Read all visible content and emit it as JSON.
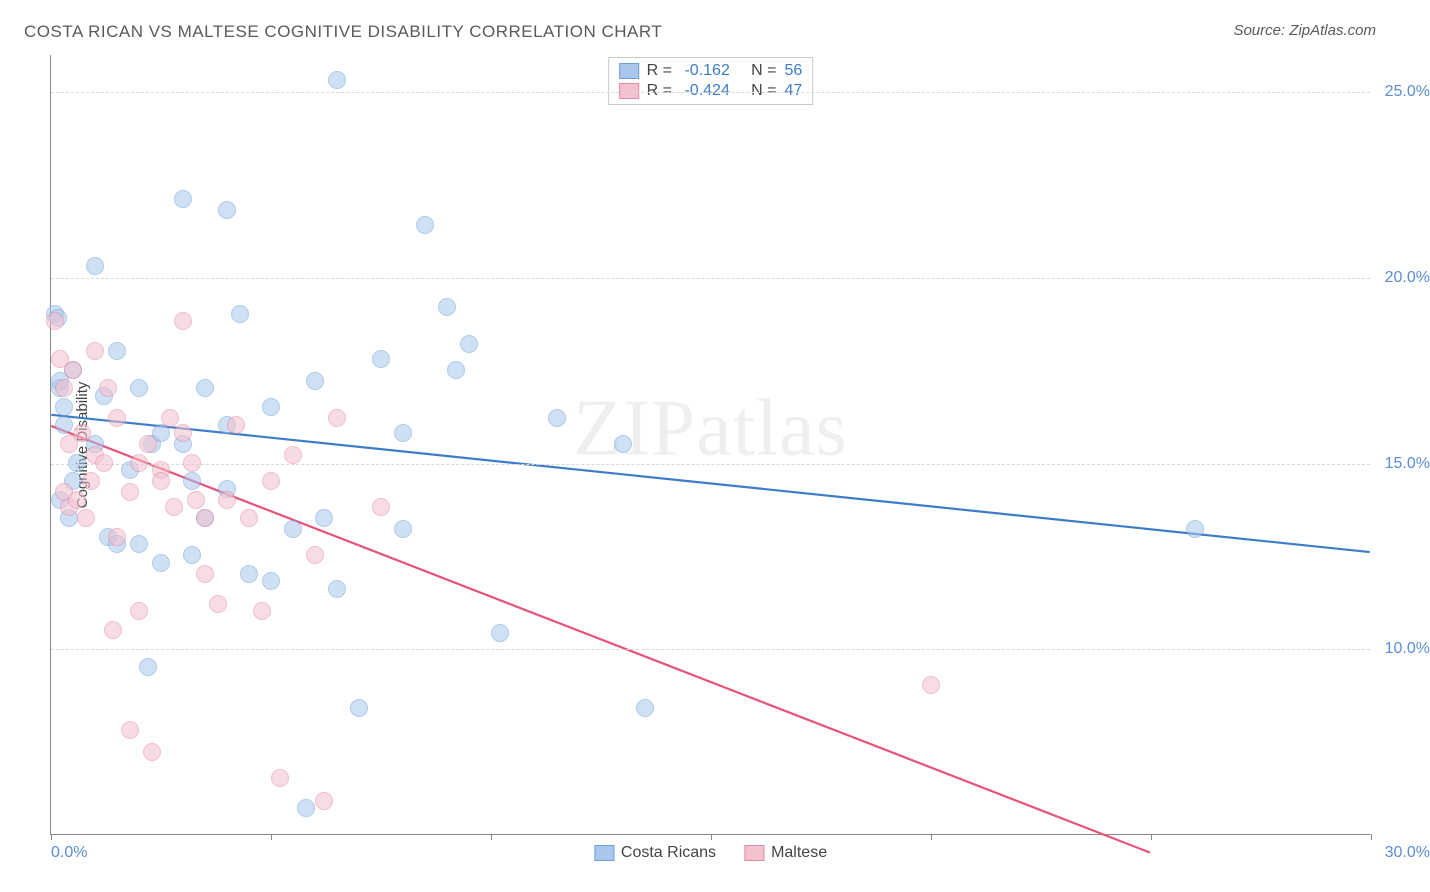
{
  "title": "COSTA RICAN VS MALTESE COGNITIVE DISABILITY CORRELATION CHART",
  "source_label": "Source: ZipAtlas.com",
  "watermark": "ZIPatlas",
  "yaxis_title": "Cognitive Disability",
  "chart": {
    "type": "scatter",
    "xlim": [
      0,
      30
    ],
    "ylim": [
      5,
      26
    ],
    "xticks": [
      0,
      5,
      10,
      15,
      20,
      25,
      30
    ],
    "xtick_labels_shown": {
      "0": "0.0%",
      "30": "30.0%"
    },
    "yticks": [
      10,
      15,
      20,
      25
    ],
    "ytick_labels": [
      "10.0%",
      "15.0%",
      "20.0%",
      "25.0%"
    ],
    "grid_color": "#d8d8d8",
    "background_color": "#ffffff",
    "axis_color": "#888888",
    "tick_label_color": "#5a8fd6",
    "point_radius": 9,
    "point_opacity": 0.55,
    "point_stroke_width": 1.2,
    "trend_line_width": 2.2,
    "series": [
      {
        "name": "Costa Ricans",
        "fill": "#a9c7ec",
        "stroke": "#6fa0d9",
        "trend_color": "#3d7cc9",
        "R": "-0.162",
        "N": "56",
        "trend": {
          "x1": 0,
          "y1": 16.3,
          "x2": 30,
          "y2": 12.6
        },
        "points": [
          [
            0.1,
            19.0
          ],
          [
            0.15,
            18.9
          ],
          [
            0.2,
            17.0
          ],
          [
            0.2,
            17.2
          ],
          [
            0.3,
            16.5
          ],
          [
            0.3,
            16.0
          ],
          [
            0.4,
            13.5
          ],
          [
            0.5,
            14.5
          ],
          [
            0.5,
            17.5
          ],
          [
            0.6,
            15.0
          ],
          [
            1.0,
            20.3
          ],
          [
            1.0,
            15.5
          ],
          [
            1.2,
            16.8
          ],
          [
            1.3,
            13.0
          ],
          [
            1.5,
            12.8
          ],
          [
            1.5,
            18.0
          ],
          [
            1.8,
            14.8
          ],
          [
            2.0,
            17.0
          ],
          [
            2.0,
            12.8
          ],
          [
            2.2,
            9.5
          ],
          [
            2.3,
            15.5
          ],
          [
            2.5,
            15.8
          ],
          [
            2.5,
            12.3
          ],
          [
            3.0,
            22.1
          ],
          [
            3.0,
            15.5
          ],
          [
            3.2,
            14.5
          ],
          [
            3.2,
            12.5
          ],
          [
            3.5,
            17.0
          ],
          [
            3.5,
            13.5
          ],
          [
            4.0,
            21.8
          ],
          [
            4.0,
            16.0
          ],
          [
            4.0,
            14.3
          ],
          [
            4.3,
            19.0
          ],
          [
            4.5,
            12.0
          ],
          [
            5.0,
            11.8
          ],
          [
            5.0,
            16.5
          ],
          [
            5.5,
            13.2
          ],
          [
            5.8,
            5.7
          ],
          [
            6.0,
            17.2
          ],
          [
            6.2,
            13.5
          ],
          [
            6.5,
            25.3
          ],
          [
            6.5,
            11.6
          ],
          [
            7.0,
            8.4
          ],
          [
            7.5,
            17.8
          ],
          [
            8.0,
            13.2
          ],
          [
            8.0,
            15.8
          ],
          [
            8.5,
            21.4
          ],
          [
            9.0,
            19.2
          ],
          [
            9.2,
            17.5
          ],
          [
            9.5,
            18.2
          ],
          [
            10.2,
            10.4
          ],
          [
            11.5,
            16.2
          ],
          [
            13.0,
            15.5
          ],
          [
            13.5,
            8.4
          ],
          [
            26.0,
            13.2
          ],
          [
            0.2,
            14.0
          ]
        ]
      },
      {
        "name": "Maltese",
        "fill": "#f4c1cf",
        "stroke": "#e68aa5",
        "trend_color": "#e6537a",
        "R": "-0.424",
        "N": "47",
        "trend": {
          "x1": 0,
          "y1": 16.0,
          "x2": 25,
          "y2": 4.5
        },
        "points": [
          [
            0.1,
            18.8
          ],
          [
            0.2,
            17.8
          ],
          [
            0.3,
            14.2
          ],
          [
            0.3,
            17.0
          ],
          [
            0.4,
            15.5
          ],
          [
            0.4,
            13.8
          ],
          [
            0.5,
            17.5
          ],
          [
            0.6,
            14.0
          ],
          [
            0.7,
            15.8
          ],
          [
            0.8,
            13.5
          ],
          [
            0.9,
            14.5
          ],
          [
            1.0,
            15.2
          ],
          [
            1.0,
            18.0
          ],
          [
            1.2,
            15.0
          ],
          [
            1.3,
            17.0
          ],
          [
            1.4,
            10.5
          ],
          [
            1.5,
            16.2
          ],
          [
            1.5,
            13.0
          ],
          [
            1.8,
            14.2
          ],
          [
            1.8,
            7.8
          ],
          [
            2.0,
            15.0
          ],
          [
            2.0,
            11.0
          ],
          [
            2.2,
            15.5
          ],
          [
            2.3,
            7.2
          ],
          [
            2.5,
            14.8
          ],
          [
            2.5,
            14.5
          ],
          [
            2.7,
            16.2
          ],
          [
            2.8,
            13.8
          ],
          [
            3.0,
            18.8
          ],
          [
            3.0,
            15.8
          ],
          [
            3.2,
            15.0
          ],
          [
            3.3,
            14.0
          ],
          [
            3.5,
            13.5
          ],
          [
            3.5,
            12.0
          ],
          [
            3.8,
            11.2
          ],
          [
            4.0,
            14.0
          ],
          [
            4.2,
            16.0
          ],
          [
            4.5,
            13.5
          ],
          [
            4.8,
            11.0
          ],
          [
            5.0,
            14.5
          ],
          [
            5.2,
            6.5
          ],
          [
            5.5,
            15.2
          ],
          [
            6.0,
            12.5
          ],
          [
            6.2,
            5.9
          ],
          [
            6.5,
            16.2
          ],
          [
            7.5,
            13.8
          ],
          [
            20.0,
            9.0
          ]
        ]
      }
    ]
  },
  "legend_bottom": [
    {
      "label": "Costa Ricans",
      "fill": "#a9c7ec",
      "stroke": "#6fa0d9"
    },
    {
      "label": "Maltese",
      "fill": "#f4c1cf",
      "stroke": "#e68aa5"
    }
  ]
}
